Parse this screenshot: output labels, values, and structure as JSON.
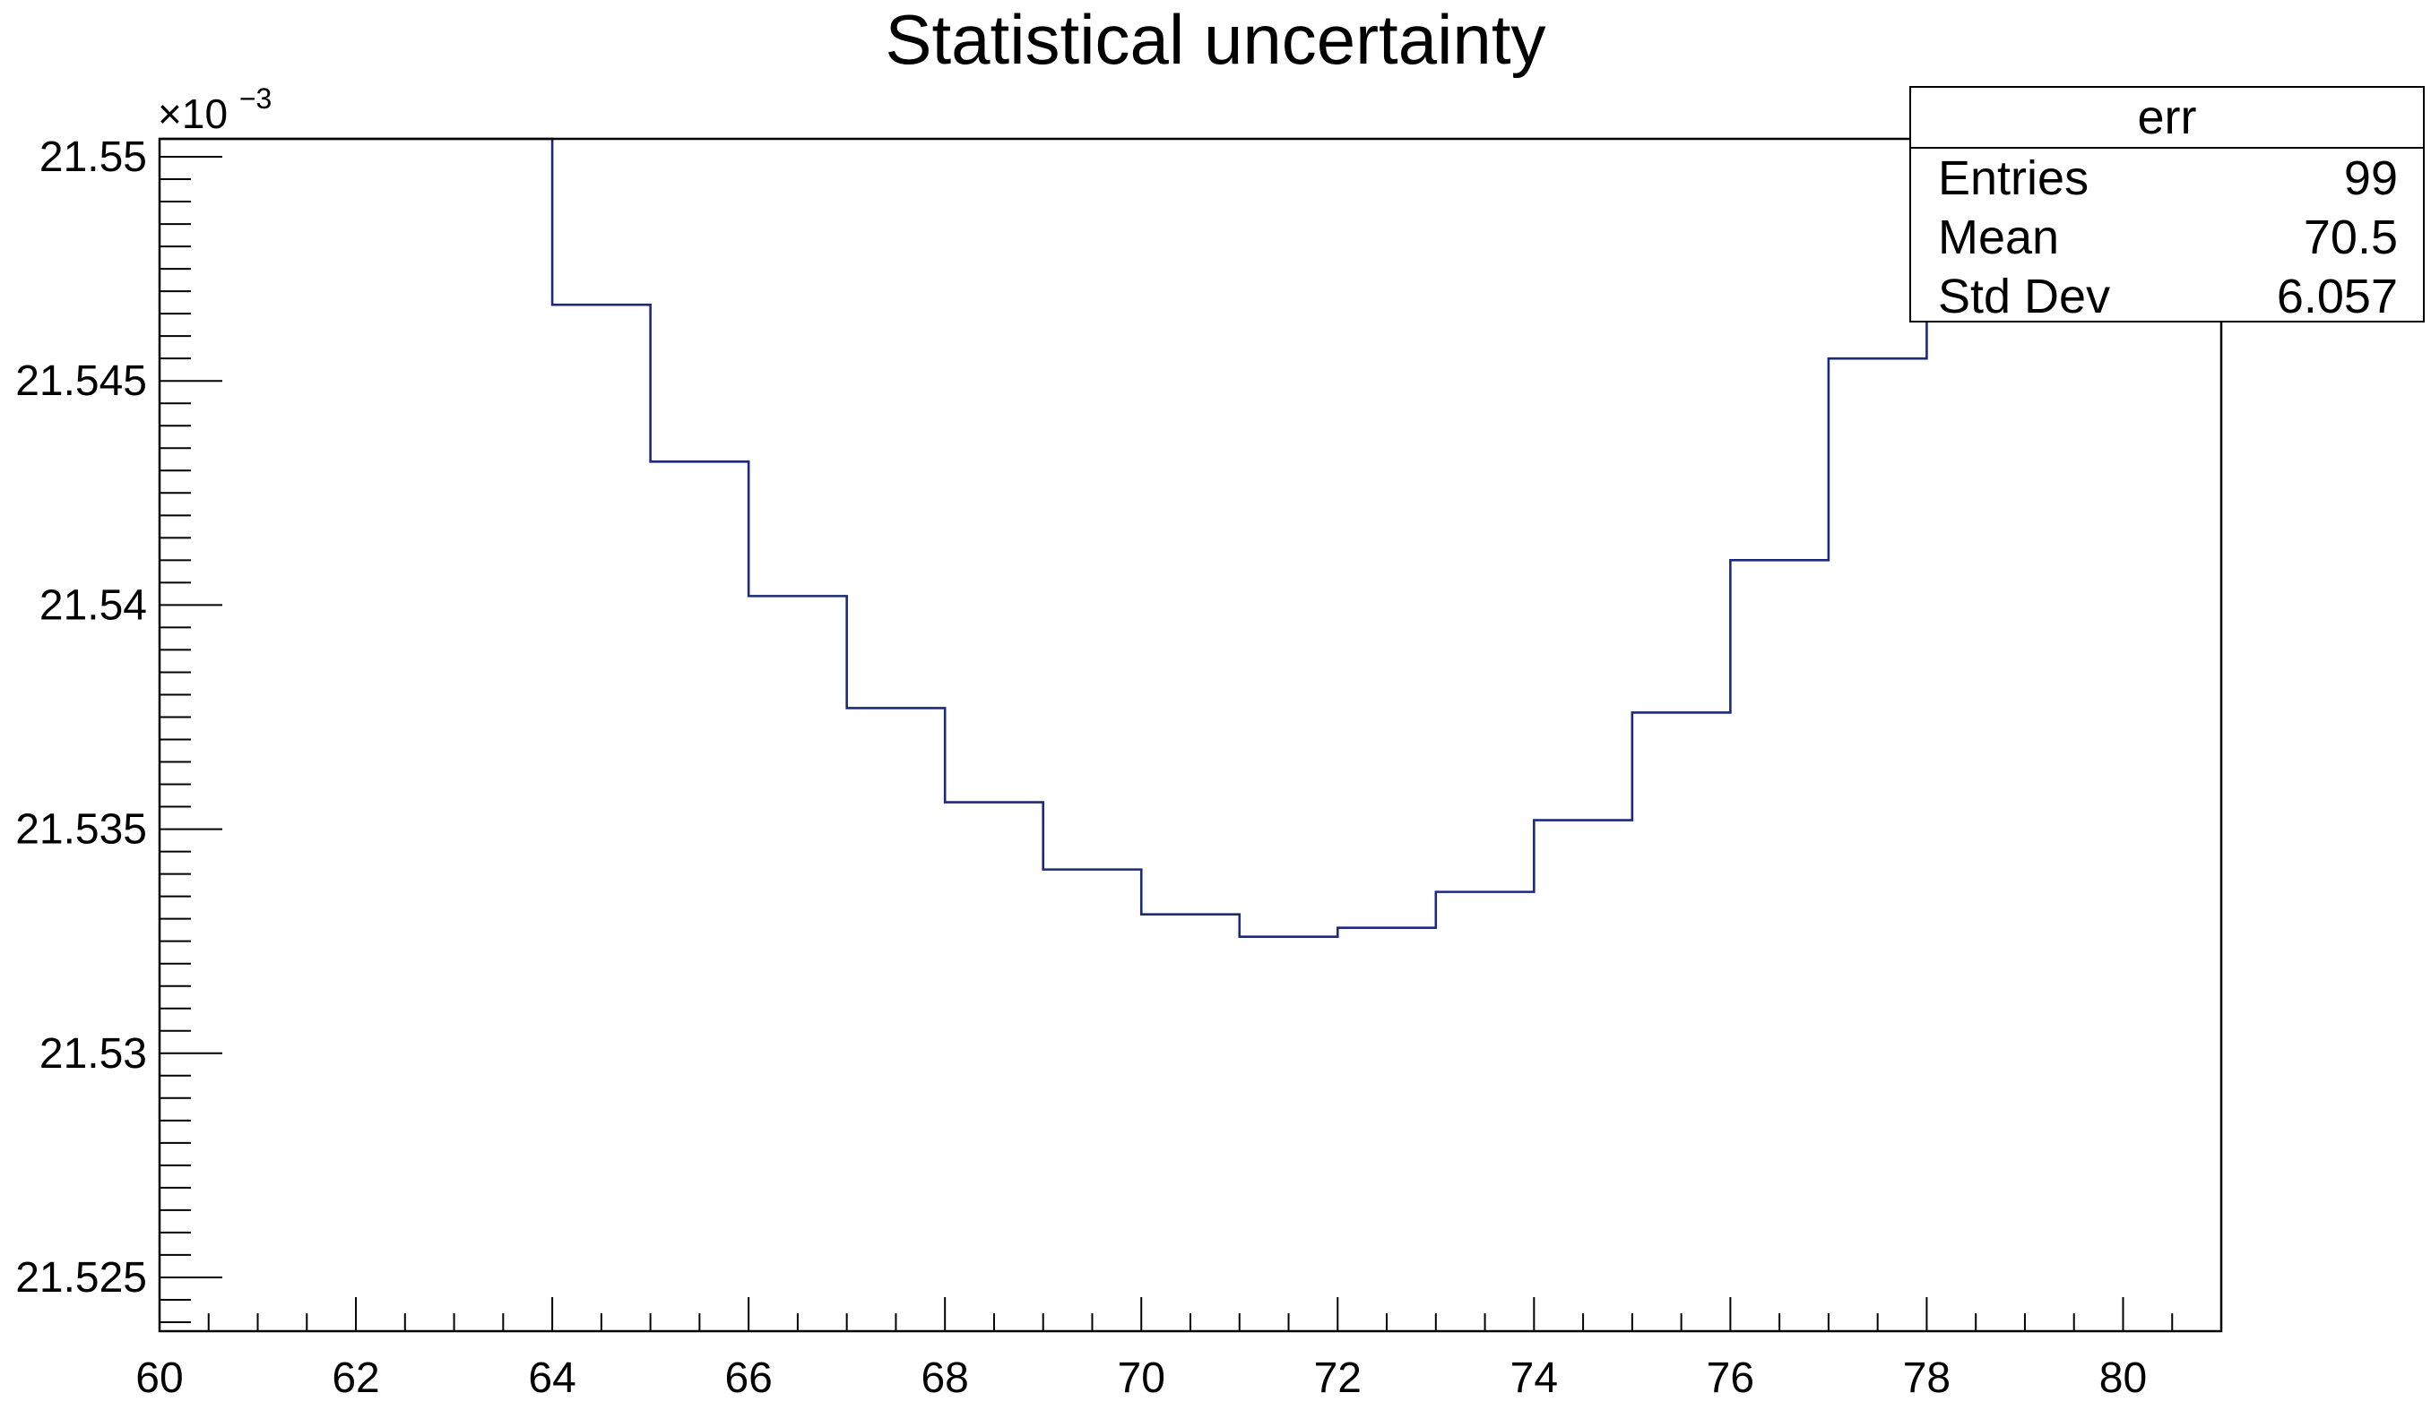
{
  "chart_data": {
    "type": "histogram",
    "title": "Statistical uncertainty",
    "xlabel": "",
    "ylabel": "",
    "y_multiplier": "×10",
    "y_multiplier_exp": "−3",
    "xlim": [
      60,
      81
    ],
    "ylim": [
      21.5238,
      21.5504
    ],
    "x_ticks": [
      60,
      62,
      64,
      66,
      68,
      70,
      72,
      74,
      76,
      78,
      80
    ],
    "x_tick_labels": [
      "60",
      "62",
      "64",
      "66",
      "68",
      "70",
      "72",
      "74",
      "76",
      "78",
      "80"
    ],
    "y_ticks": [
      21.525,
      21.53,
      21.535,
      21.54,
      21.545,
      21.55
    ],
    "y_tick_labels": [
      "21.525",
      "21.53",
      "21.535",
      "21.54",
      "21.545",
      "21.55"
    ],
    "bins": [
      {
        "x0": 60,
        "x1": 64,
        "y": 21.5505
      },
      {
        "x0": 64,
        "x1": 65,
        "y": 21.5467
      },
      {
        "x0": 65,
        "x1": 66,
        "y": 21.5432
      },
      {
        "x0": 66,
        "x1": 67,
        "y": 21.5402
      },
      {
        "x0": 67,
        "x1": 68,
        "y": 21.5377
      },
      {
        "x0": 68,
        "x1": 69,
        "y": 21.5356
      },
      {
        "x0": 69,
        "x1": 70,
        "y": 21.5341
      },
      {
        "x0": 70,
        "x1": 71,
        "y": 21.5331
      },
      {
        "x0": 71,
        "x1": 72,
        "y": 21.5326
      },
      {
        "x0": 72,
        "x1": 73,
        "y": 21.5328
      },
      {
        "x0": 73,
        "x1": 74,
        "y": 21.5336
      },
      {
        "x0": 74,
        "x1": 75,
        "y": 21.5352
      },
      {
        "x0": 75,
        "x1": 76,
        "y": 21.5376
      },
      {
        "x0": 76,
        "x1": 77,
        "y": 21.541
      },
      {
        "x0": 77,
        "x1": 78,
        "y": 21.5455
      },
      {
        "x0": 78,
        "x1": 81,
        "y": 21.5505
      }
    ],
    "line_color": "#1c2a7c",
    "grid": false,
    "legend_position": "top-right"
  },
  "stats_box": {
    "name": "err",
    "rows": [
      {
        "label": "Entries",
        "value": "99"
      },
      {
        "label": "Mean",
        "value": "70.5"
      },
      {
        "label": "Std Dev",
        "value": "6.057"
      }
    ]
  }
}
